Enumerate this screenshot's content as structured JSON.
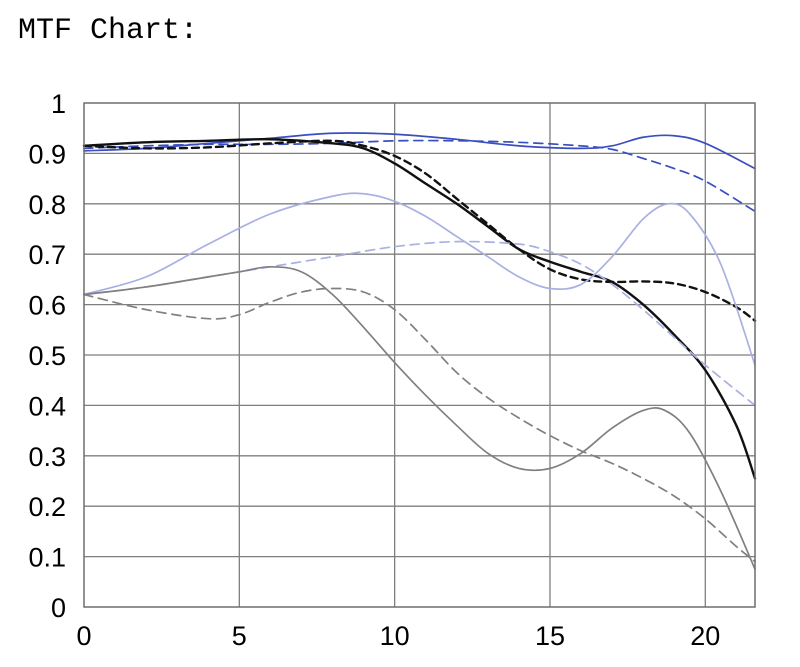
{
  "title": "MTF Chart:",
  "chart_data": {
    "type": "line",
    "title": "",
    "xlabel": "",
    "ylabel": "",
    "xlim": [
      0,
      21.6
    ],
    "ylim": [
      0,
      1
    ],
    "grid": true,
    "xticks": [
      0,
      5,
      10,
      15,
      20
    ],
    "xtick_labels": [
      "0",
      "5",
      "10",
      "15",
      "20"
    ],
    "yticks": [
      0,
      0.1,
      0.2,
      0.3,
      0.4,
      0.5,
      0.6,
      0.7,
      0.8,
      0.9,
      1
    ],
    "ytick_labels": [
      "0",
      "0.1",
      "0.2",
      "0.3",
      "0.4",
      "0.5",
      "0.6",
      "0.7",
      "0.8",
      "0.9",
      "1"
    ],
    "colors": {
      "black": "#111111",
      "blue": "#3a4fbf",
      "light_blue": "#a9b0e3",
      "gray": "#808080",
      "grid": "#7f7f7f",
      "frame": "#6e6e6e"
    },
    "series": [
      {
        "color": "#3a4fbf",
        "dash": "solid",
        "points": [
          [
            0,
            0.905
          ],
          [
            2,
            0.91
          ],
          [
            4,
            0.92
          ],
          [
            6,
            0.93
          ],
          [
            8,
            0.94
          ],
          [
            10,
            0.938
          ],
          [
            12,
            0.928
          ],
          [
            14,
            0.915
          ],
          [
            16,
            0.91
          ],
          [
            17,
            0.915
          ],
          [
            18,
            0.932
          ],
          [
            19,
            0.935
          ],
          [
            20,
            0.92
          ],
          [
            21.6,
            0.87
          ]
        ]
      },
      {
        "color": "#3a4fbf",
        "dash": "dashed",
        "points": [
          [
            0,
            0.91
          ],
          [
            2,
            0.915
          ],
          [
            4,
            0.918
          ],
          [
            6,
            0.918
          ],
          [
            8,
            0.92
          ],
          [
            10,
            0.925
          ],
          [
            12,
            0.925
          ],
          [
            14,
            0.922
          ],
          [
            16,
            0.915
          ],
          [
            17,
            0.908
          ],
          [
            18,
            0.89
          ],
          [
            19,
            0.87
          ],
          [
            20,
            0.845
          ],
          [
            21.6,
            0.785
          ]
        ]
      },
      {
        "color": "#111111",
        "dash": "solid",
        "points": [
          [
            0,
            0.915
          ],
          [
            2,
            0.922
          ],
          [
            4,
            0.925
          ],
          [
            6,
            0.928
          ],
          [
            8,
            0.92
          ],
          [
            9,
            0.91
          ],
          [
            10,
            0.88
          ],
          [
            11,
            0.84
          ],
          [
            12,
            0.8
          ],
          [
            13,
            0.755
          ],
          [
            14,
            0.71
          ],
          [
            15,
            0.685
          ],
          [
            16,
            0.665
          ],
          [
            17,
            0.645
          ],
          [
            18,
            0.6
          ],
          [
            19,
            0.54
          ],
          [
            20,
            0.47
          ],
          [
            21,
            0.36
          ],
          [
            21.6,
            0.255
          ]
        ]
      },
      {
        "color": "#111111",
        "dash": "dashed",
        "points": [
          [
            0,
            0.915
          ],
          [
            2,
            0.91
          ],
          [
            4,
            0.912
          ],
          [
            6,
            0.92
          ],
          [
            8,
            0.925
          ],
          [
            9,
            0.915
          ],
          [
            10,
            0.895
          ],
          [
            11,
            0.86
          ],
          [
            12,
            0.81
          ],
          [
            13,
            0.76
          ],
          [
            14,
            0.71
          ],
          [
            15,
            0.67
          ],
          [
            16,
            0.65
          ],
          [
            17,
            0.645
          ],
          [
            18,
            0.646
          ],
          [
            19,
            0.642
          ],
          [
            20,
            0.625
          ],
          [
            21,
            0.595
          ],
          [
            21.6,
            0.568
          ]
        ]
      },
      {
        "color": "#a9b0e3",
        "dash": "solid",
        "points": [
          [
            0,
            0.62
          ],
          [
            2,
            0.655
          ],
          [
            4,
            0.72
          ],
          [
            6,
            0.78
          ],
          [
            8,
            0.815
          ],
          [
            9,
            0.82
          ],
          [
            10,
            0.805
          ],
          [
            11,
            0.775
          ],
          [
            12,
            0.735
          ],
          [
            13,
            0.695
          ],
          [
            14,
            0.655
          ],
          [
            15,
            0.632
          ],
          [
            16,
            0.64
          ],
          [
            17,
            0.695
          ],
          [
            18,
            0.77
          ],
          [
            18.8,
            0.8
          ],
          [
            19.5,
            0.78
          ],
          [
            20.5,
            0.68
          ],
          [
            21.6,
            0.48
          ]
        ]
      },
      {
        "color": "#a9b0e3",
        "dash": "dashed",
        "points": [
          [
            0,
            0.62
          ],
          [
            2,
            0.635
          ],
          [
            4,
            0.655
          ],
          [
            6,
            0.675
          ],
          [
            8,
            0.695
          ],
          [
            10,
            0.715
          ],
          [
            12,
            0.725
          ],
          [
            14,
            0.72
          ],
          [
            15,
            0.705
          ],
          [
            16,
            0.68
          ],
          [
            17,
            0.64
          ],
          [
            18,
            0.59
          ],
          [
            19,
            0.535
          ],
          [
            20,
            0.48
          ],
          [
            21.6,
            0.4
          ]
        ]
      },
      {
        "color": "#808080",
        "dash": "solid",
        "points": [
          [
            0,
            0.62
          ],
          [
            2,
            0.635
          ],
          [
            4,
            0.655
          ],
          [
            5,
            0.665
          ],
          [
            6,
            0.675
          ],
          [
            7,
            0.665
          ],
          [
            8,
            0.62
          ],
          [
            9,
            0.555
          ],
          [
            10,
            0.485
          ],
          [
            11,
            0.42
          ],
          [
            12,
            0.36
          ],
          [
            13,
            0.305
          ],
          [
            14,
            0.275
          ],
          [
            15,
            0.275
          ],
          [
            16,
            0.305
          ],
          [
            17,
            0.355
          ],
          [
            18,
            0.39
          ],
          [
            18.7,
            0.39
          ],
          [
            19.5,
            0.345
          ],
          [
            20.5,
            0.23
          ],
          [
            21.6,
            0.075
          ]
        ]
      },
      {
        "color": "#808080",
        "dash": "dashed",
        "points": [
          [
            0,
            0.62
          ],
          [
            2,
            0.59
          ],
          [
            4,
            0.572
          ],
          [
            5,
            0.58
          ],
          [
            6,
            0.605
          ],
          [
            7,
            0.625
          ],
          [
            8,
            0.632
          ],
          [
            9,
            0.625
          ],
          [
            10,
            0.59
          ],
          [
            11,
            0.53
          ],
          [
            12,
            0.465
          ],
          [
            13,
            0.415
          ],
          [
            14,
            0.375
          ],
          [
            15,
            0.34
          ],
          [
            16,
            0.31
          ],
          [
            17,
            0.285
          ],
          [
            18,
            0.255
          ],
          [
            19,
            0.22
          ],
          [
            20,
            0.175
          ],
          [
            21,
            0.12
          ],
          [
            21.6,
            0.09
          ]
        ]
      }
    ]
  }
}
